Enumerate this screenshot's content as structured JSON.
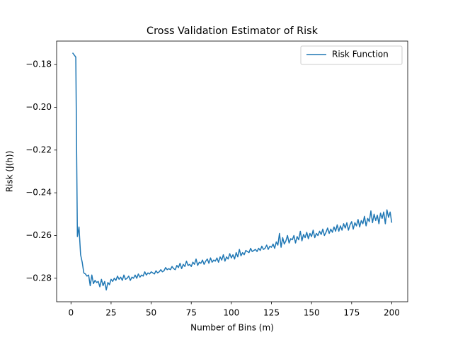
{
  "chart_data": {
    "type": "line",
    "title": "Cross Validation Estimator of Risk",
    "x_label": "Number of Bins (m)",
    "y_label": "Risk (J(h))",
    "legend_position": "upper right",
    "x": [
      1,
      2,
      3,
      4,
      5,
      6,
      7,
      8,
      9,
      10,
      11,
      12,
      13,
      14,
      15,
      16,
      17,
      18,
      19,
      20,
      21,
      22,
      23,
      24,
      25,
      26,
      27,
      28,
      29,
      30,
      31,
      32,
      33,
      34,
      35,
      36,
      37,
      38,
      39,
      40,
      41,
      42,
      43,
      44,
      45,
      46,
      47,
      48,
      49,
      50,
      51,
      52,
      53,
      54,
      55,
      56,
      57,
      58,
      59,
      60,
      61,
      62,
      63,
      64,
      65,
      66,
      67,
      68,
      69,
      70,
      71,
      72,
      73,
      74,
      75,
      76,
      77,
      78,
      79,
      80,
      81,
      82,
      83,
      84,
      85,
      86,
      87,
      88,
      89,
      90,
      91,
      92,
      93,
      94,
      95,
      96,
      97,
      98,
      99,
      100,
      101,
      102,
      103,
      104,
      105,
      106,
      107,
      108,
      109,
      110,
      111,
      112,
      113,
      114,
      115,
      116,
      117,
      118,
      119,
      120,
      121,
      122,
      123,
      124,
      125,
      126,
      127,
      128,
      129,
      130,
      131,
      132,
      133,
      134,
      135,
      136,
      137,
      138,
      139,
      140,
      141,
      142,
      143,
      144,
      145,
      146,
      147,
      148,
      149,
      150,
      151,
      152,
      153,
      154,
      155,
      156,
      157,
      158,
      159,
      160,
      161,
      162,
      163,
      164,
      165,
      166,
      167,
      168,
      169,
      170,
      171,
      172,
      173,
      174,
      175,
      176,
      177,
      178,
      179,
      180,
      181,
      182,
      183,
      184,
      185,
      186,
      187,
      188,
      189,
      190,
      191,
      192,
      193,
      194,
      195,
      196,
      197,
      198,
      199,
      200
    ],
    "series": [
      {
        "name": "Risk Function",
        "color": "#1f77b4",
        "values": [
          -0.1745,
          -0.1755,
          -0.1765,
          -0.2605,
          -0.256,
          -0.269,
          -0.2725,
          -0.2775,
          -0.278,
          -0.279,
          -0.2785,
          -0.2835,
          -0.2785,
          -0.2825,
          -0.281,
          -0.282,
          -0.2815,
          -0.284,
          -0.2805,
          -0.2835,
          -0.2815,
          -0.2855,
          -0.282,
          -0.283,
          -0.2805,
          -0.2815,
          -0.28,
          -0.281,
          -0.279,
          -0.2805,
          -0.2795,
          -0.281,
          -0.2785,
          -0.2805,
          -0.28,
          -0.279,
          -0.281,
          -0.2795,
          -0.28,
          -0.2785,
          -0.28,
          -0.278,
          -0.2795,
          -0.2785,
          -0.279,
          -0.277,
          -0.2785,
          -0.2775,
          -0.278,
          -0.277,
          -0.2775,
          -0.278,
          -0.2765,
          -0.2775,
          -0.277,
          -0.276,
          -0.277,
          -0.2765,
          -0.275,
          -0.276,
          -0.2755,
          -0.276,
          -0.2745,
          -0.2755,
          -0.276,
          -0.274,
          -0.275,
          -0.273,
          -0.2755,
          -0.2735,
          -0.2745,
          -0.272,
          -0.274,
          -0.2735,
          -0.2745,
          -0.2725,
          -0.2735,
          -0.271,
          -0.274,
          -0.2725,
          -0.273,
          -0.2715,
          -0.2735,
          -0.272,
          -0.271,
          -0.273,
          -0.2705,
          -0.2725,
          -0.2715,
          -0.272,
          -0.2705,
          -0.2725,
          -0.27,
          -0.2715,
          -0.269,
          -0.272,
          -0.27,
          -0.271,
          -0.2685,
          -0.2705,
          -0.269,
          -0.271,
          -0.268,
          -0.27,
          -0.2665,
          -0.2695,
          -0.268,
          -0.269,
          -0.267,
          -0.2675,
          -0.268,
          -0.266,
          -0.2675,
          -0.267,
          -0.2665,
          -0.2675,
          -0.266,
          -0.267,
          -0.265,
          -0.2665,
          -0.266,
          -0.2645,
          -0.2665,
          -0.265,
          -0.2655,
          -0.264,
          -0.266,
          -0.263,
          -0.2645,
          -0.259,
          -0.2655,
          -0.261,
          -0.264,
          -0.2625,
          -0.26,
          -0.2635,
          -0.2615,
          -0.262,
          -0.26,
          -0.2635,
          -0.2605,
          -0.262,
          -0.258,
          -0.2625,
          -0.2595,
          -0.261,
          -0.2585,
          -0.2615,
          -0.259,
          -0.2605,
          -0.2575,
          -0.261,
          -0.259,
          -0.26,
          -0.258,
          -0.2595,
          -0.257,
          -0.26,
          -0.2585,
          -0.2565,
          -0.259,
          -0.257,
          -0.2585,
          -0.256,
          -0.258,
          -0.255,
          -0.258,
          -0.2555,
          -0.2575,
          -0.2545,
          -0.2565,
          -0.254,
          -0.2575,
          -0.255,
          -0.2535,
          -0.257,
          -0.254,
          -0.2555,
          -0.2525,
          -0.256,
          -0.253,
          -0.2545,
          -0.251,
          -0.2555,
          -0.252,
          -0.2535,
          -0.2485,
          -0.254,
          -0.25,
          -0.253,
          -0.2505,
          -0.2545,
          -0.2495,
          -0.252,
          -0.249,
          -0.2545,
          -0.248,
          -0.2515,
          -0.249,
          -0.254
        ]
      }
    ],
    "xlim": [
      -8.95,
      209.95
    ],
    "xticks": [
      0,
      25,
      50,
      75,
      100,
      125,
      150,
      175,
      200
    ],
    "ylim": [
      -0.291,
      -0.169
    ],
    "yticks": [
      {
        "value": -0.28,
        "label": "−0.28"
      },
      {
        "value": -0.26,
        "label": "−0.26"
      },
      {
        "value": -0.24,
        "label": "−0.24"
      },
      {
        "value": -0.22,
        "label": "−0.22"
      },
      {
        "value": -0.2,
        "label": "−0.20"
      },
      {
        "value": -0.18,
        "label": "−0.18"
      }
    ],
    "grid": false
  }
}
